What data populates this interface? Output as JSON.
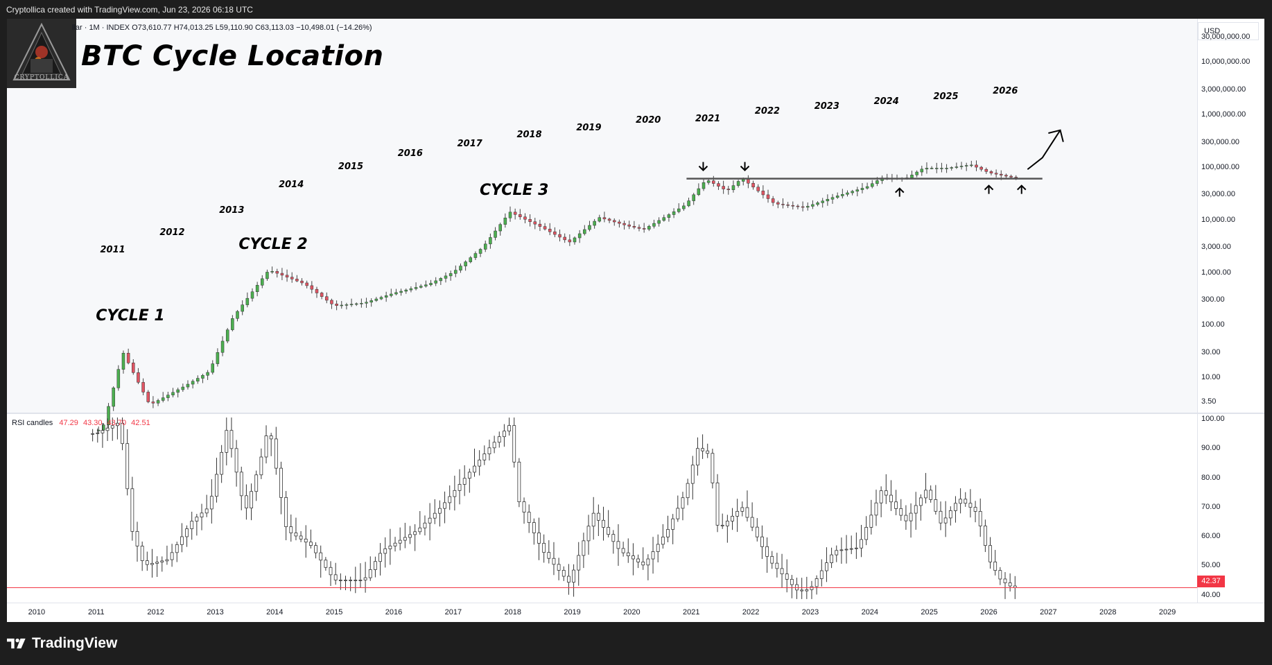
{
  "header": {
    "text": "Cryptollica created with TradingView.com, Jun 23, 2026 06:18 UTC"
  },
  "ticker": {
    "text": "llar · 1M · INDEX  O73,610.77  H74,013.25  L59,110.90  C63,113.03  −10,498.01 (−14.26%)"
  },
  "logo": {
    "text": "CRYPTOLLICA"
  },
  "title": "BTC Cycle Location",
  "currency_button": "USD",
  "rsi_header": {
    "name": "RSI candles",
    "v1": "47.29",
    "v2": "43.30",
    "v3": "43.70",
    "v4": "42.51"
  },
  "last_rsi_tag": "42.37",
  "footer": {
    "brand": "TradingView"
  },
  "colors": {
    "up": "#4caf50",
    "down": "#e05563",
    "rsi_line": "#f23645"
  },
  "price_axis_labels": [
    "30,000,000.00",
    "10,000,000.00",
    "3,000,000.00",
    "1,000,000.00",
    "300,000.00",
    "100,000.00",
    "30,000.00",
    "10,000.00",
    "3,000.00",
    "1,000.00",
    "300.00",
    "100.00",
    "30.00",
    "10.00",
    "3.50"
  ],
  "rsi_axis_labels": [
    "100.00",
    "90.00",
    "80.00",
    "70.00",
    "60.00",
    "50.00",
    "40.00"
  ],
  "time_axis_labels": [
    "2010",
    "2011",
    "2012",
    "2013",
    "2014",
    "2015",
    "2016",
    "2017",
    "2018",
    "2019",
    "2020",
    "2021",
    "2022",
    "2023",
    "2024",
    "2025",
    "2026",
    "2027",
    "2028",
    "2029"
  ],
  "chart_annotations": {
    "years": [
      "2011",
      "2012",
      "2013",
      "2014",
      "2015",
      "2016",
      "2017",
      "2018",
      "2019",
      "2020",
      "2021",
      "2022",
      "2023",
      "2024",
      "2025",
      "2026"
    ],
    "cycles": [
      "CYCLE 1",
      "CYCLE 2",
      "CYCLE 3"
    ],
    "resistance_level": 60000
  },
  "chart_data": {
    "type": "candlestick",
    "title": "BTC Cycle Location",
    "timeframe": "1M",
    "y_scale": "log",
    "ylim": [
      2.5,
      60000000
    ],
    "xlim": [
      2009.5,
      2029.5
    ],
    "price_key_points": [
      [
        2011.1,
        1
      ],
      [
        2011.45,
        30
      ],
      [
        2011.9,
        3
      ],
      [
        2012.5,
        7
      ],
      [
        2012.9,
        13
      ],
      [
        2013.3,
        140
      ],
      [
        2013.9,
        1100
      ],
      [
        2014.5,
        600
      ],
      [
        2015.0,
        230
      ],
      [
        2015.5,
        260
      ],
      [
        2016.0,
        400
      ],
      [
        2016.6,
        600
      ],
      [
        2017.0,
        1000
      ],
      [
        2017.5,
        3000
      ],
      [
        2017.95,
        14000
      ],
      [
        2018.5,
        7000
      ],
      [
        2018.95,
        3700
      ],
      [
        2019.45,
        11000
      ],
      [
        2019.95,
        7500
      ],
      [
        2020.2,
        6500
      ],
      [
        2020.9,
        19000
      ],
      [
        2021.25,
        58000
      ],
      [
        2021.6,
        35000
      ],
      [
        2021.85,
        61000
      ],
      [
        2022.4,
        20000
      ],
      [
        2022.9,
        17000
      ],
      [
        2023.4,
        27000
      ],
      [
        2023.95,
        42000
      ],
      [
        2024.2,
        62000
      ],
      [
        2024.6,
        60000
      ],
      [
        2024.9,
        95000
      ],
      [
        2025.3,
        95000
      ],
      [
        2025.7,
        110000
      ],
      [
        2026.0,
        78000
      ],
      [
        2026.4,
        63113
      ]
    ],
    "rsi_key_points": [
      [
        2011.0,
        95
      ],
      [
        2011.4,
        99
      ],
      [
        2011.6,
        62
      ],
      [
        2011.8,
        50
      ],
      [
        2012.2,
        52
      ],
      [
        2012.6,
        65
      ],
      [
        2012.9,
        70
      ],
      [
        2013.2,
        97
      ],
      [
        2013.5,
        68
      ],
      [
        2013.75,
        85
      ],
      [
        2013.9,
        98
      ],
      [
        2014.2,
        62
      ],
      [
        2014.6,
        57
      ],
      [
        2015.0,
        45
      ],
      [
        2015.5,
        45
      ],
      [
        2015.8,
        55
      ],
      [
        2016.4,
        62
      ],
      [
        2016.8,
        70
      ],
      [
        2017.2,
        80
      ],
      [
        2017.6,
        90
      ],
      [
        2017.95,
        98
      ],
      [
        2018.1,
        72
      ],
      [
        2018.5,
        55
      ],
      [
        2018.95,
        44
      ],
      [
        2019.35,
        68
      ],
      [
        2019.8,
        55
      ],
      [
        2020.2,
        50
      ],
      [
        2020.6,
        62
      ],
      [
        2020.9,
        75
      ],
      [
        2021.1,
        90
      ],
      [
        2021.3,
        88
      ],
      [
        2021.45,
        62
      ],
      [
        2021.85,
        70
      ],
      [
        2022.3,
        52
      ],
      [
        2022.8,
        41
      ],
      [
        2023.0,
        42
      ],
      [
        2023.4,
        55
      ],
      [
        2023.8,
        56
      ],
      [
        2024.2,
        76
      ],
      [
        2024.6,
        65
      ],
      [
        2024.95,
        76
      ],
      [
        2025.2,
        64
      ],
      [
        2025.5,
        73
      ],
      [
        2025.8,
        68
      ],
      [
        2026.0,
        52
      ],
      [
        2026.2,
        45
      ],
      [
        2026.4,
        42.4
      ]
    ],
    "rsi_ylim": [
      38,
      101
    ],
    "rsi_reference_line": 42.37
  }
}
